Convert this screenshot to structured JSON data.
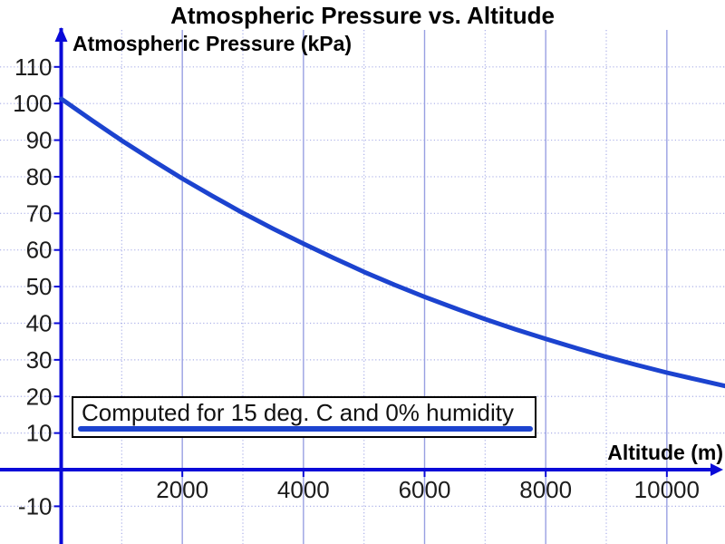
{
  "chart_data": {
    "type": "line",
    "title": "Atmospheric Pressure vs. Altitude",
    "xlabel": "Altitude (m)",
    "ylabel": "Atmospheric Pressure (kPa)",
    "legend": {
      "text": "Computed for 15 deg. C and 0% humidity",
      "position": "inside-bottom-left"
    },
    "x_ticks": [
      2000,
      4000,
      6000,
      8000,
      10000
    ],
    "y_ticks": [
      -10,
      10,
      20,
      30,
      40,
      50,
      60,
      70,
      80,
      90,
      100,
      110
    ],
    "xlim": [
      -1010,
      10960
    ],
    "ylim": [
      -20.3,
      120.1
    ],
    "grid": {
      "x_major_every": 2000,
      "x_minor_every": 1000,
      "y_every": 10,
      "x_major_style": "solid",
      "x_minor_style": "dotted",
      "y_style": "dotted"
    },
    "series": [
      {
        "name": "Atmospheric pressure",
        "x": [
          0,
          500,
          1000,
          1500,
          2000,
          2500,
          3000,
          3500,
          4000,
          4500,
          5000,
          5500,
          6000,
          6500,
          7000,
          7500,
          8000,
          8500,
          9000,
          9500,
          10000,
          10500,
          11000
        ],
        "y": [
          101.3,
          95.5,
          89.9,
          84.6,
          79.5,
          74.7,
          70.1,
          65.8,
          61.7,
          57.8,
          54.0,
          50.5,
          47.2,
          44.1,
          41.1,
          38.3,
          35.7,
          33.2,
          30.8,
          28.6,
          26.5,
          24.6,
          22.7
        ]
      }
    ],
    "colors": {
      "axis": "#0a0ad8",
      "curve": "#1c43cf",
      "grid_major": "#99a0e2",
      "grid_minor": "#abb0e8",
      "tick_text": "#1c1c1c",
      "title_text": "#000000",
      "legend_border": "#000000"
    }
  }
}
